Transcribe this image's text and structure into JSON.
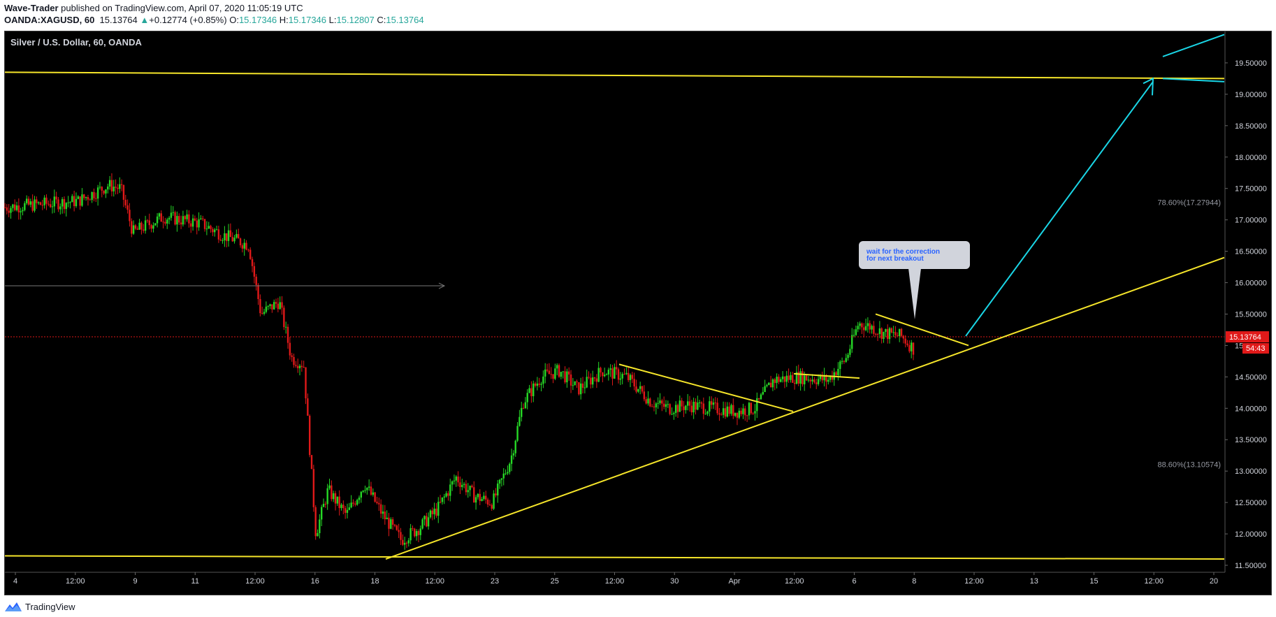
{
  "header": {
    "author": "Wave-Trader",
    "published_text": " published on TradingView.com, April 07, 2020 11:05:19 UTC",
    "symbol": "OANDA:XAGUSD, 60",
    "last": "15.13764",
    "change": "+0.12774 (+0.85%)",
    "o_label": "O:",
    "o_value": "15.17346",
    "h_label": "H:",
    "h_value": "15.17346",
    "l_label": "L:",
    "l_value": "15.12807",
    "c_label": "C:",
    "c_value": "15.13764"
  },
  "chart_title": "Silver / U.S. Dollar, 60, OANDA",
  "footer": {
    "brand": "TradingView"
  },
  "colors": {
    "up": "#26d926",
    "down": "#e01919",
    "trendline": "#f5e52a",
    "arrow": "#1ad6e6",
    "price_line": "#e01919",
    "axis_text": "#d1d4dc"
  },
  "chart_data": {
    "type": "candlestick",
    "title": "Silver / U.S. Dollar, 60, OANDA",
    "ylim": [
      11.4,
      20.0
    ],
    "y_ticks": [
      "11.50000",
      "12.00000",
      "12.50000",
      "13.00000",
      "13.50000",
      "14.00000",
      "14.50000",
      "15.00000",
      "15.50000",
      "16.00000",
      "16.50000",
      "17.00000",
      "17.50000",
      "18.00000",
      "18.50000",
      "19.00000",
      "19.50000"
    ],
    "x_ticks": [
      "4",
      "12:00",
      "9",
      "11",
      "12:00",
      "16",
      "18",
      "12:00",
      "23",
      "25",
      "12:00",
      "30",
      "Apr",
      "12:00",
      "6",
      "8",
      "12:00",
      "13",
      "15",
      "12:00",
      "20"
    ],
    "last_price_label": "15.13764",
    "countdown_label": "54:43",
    "fib_levels": [
      {
        "label": "78.60%(17.27944)",
        "value": 17.27944
      },
      {
        "label": "88.60%(13.10574)",
        "value": 13.10574
      }
    ],
    "annotation": "wait for the correction\nfor next breakout",
    "price_path": [
      [
        0,
        17.2
      ],
      [
        0.03,
        17.25
      ],
      [
        0.06,
        17.3
      ],
      [
        0.085,
        17.55
      ],
      [
        0.095,
        17.5
      ],
      [
        0.105,
        16.8
      ],
      [
        0.13,
        17.05
      ],
      [
        0.16,
        16.95
      ],
      [
        0.18,
        16.75
      ],
      [
        0.2,
        16.6
      ],
      [
        0.21,
        15.5
      ],
      [
        0.225,
        15.7
      ],
      [
        0.235,
        14.8
      ],
      [
        0.245,
        14.7
      ],
      [
        0.255,
        12.0
      ],
      [
        0.265,
        12.7
      ],
      [
        0.28,
        12.3
      ],
      [
        0.295,
        12.8
      ],
      [
        0.31,
        12.3
      ],
      [
        0.325,
        11.9
      ],
      [
        0.34,
        12.1
      ],
      [
        0.355,
        12.4
      ],
      [
        0.37,
        12.9
      ],
      [
        0.385,
        12.6
      ],
      [
        0.4,
        12.5
      ],
      [
        0.415,
        13.2
      ],
      [
        0.425,
        14.1
      ],
      [
        0.44,
        14.5
      ],
      [
        0.455,
        14.6
      ],
      [
        0.47,
        14.3
      ],
      [
        0.49,
        14.6
      ],
      [
        0.51,
        14.5
      ],
      [
        0.53,
        14.1
      ],
      [
        0.545,
        14.0
      ],
      [
        0.56,
        14.05
      ],
      [
        0.58,
        14.0
      ],
      [
        0.6,
        13.95
      ],
      [
        0.615,
        14.0
      ],
      [
        0.63,
        14.45
      ],
      [
        0.65,
        14.5
      ],
      [
        0.675,
        14.45
      ],
      [
        0.69,
        14.8
      ],
      [
        0.7,
        15.35
      ],
      [
        0.71,
        15.3
      ],
      [
        0.72,
        15.2
      ],
      [
        0.735,
        15.15
      ],
      [
        0.745,
        14.95
      ]
    ]
  }
}
